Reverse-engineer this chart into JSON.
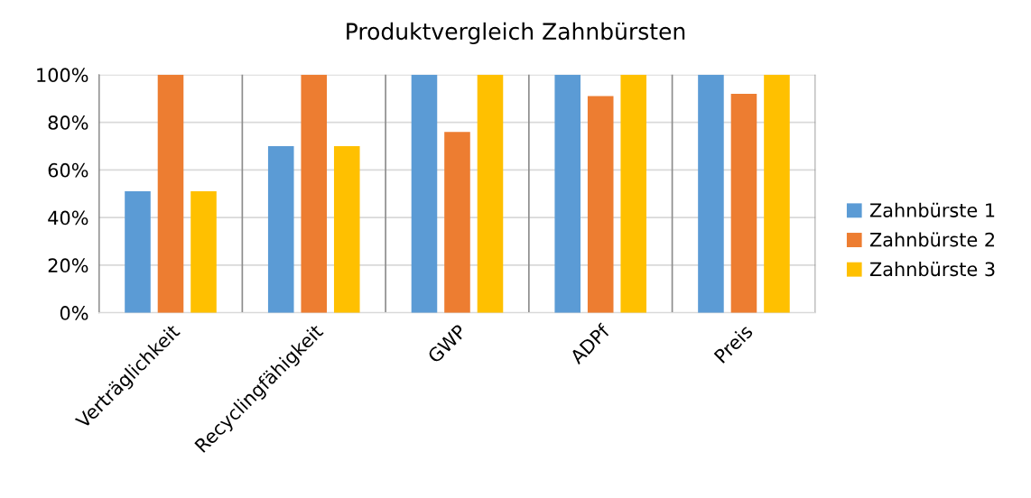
{
  "chart_data": {
    "type": "bar",
    "title": "Produktvergleich Zahnbürsten",
    "categories": [
      "Verträglichkeit",
      "Recyclingfähigkeit",
      "GWP",
      "ADPf",
      "Preis"
    ],
    "series": [
      {
        "name": "Zahnbürste 1",
        "color": "#5b9bd5",
        "values": [
          51,
          70,
          100,
          100,
          100
        ]
      },
      {
        "name": "Zahnbürste 2",
        "color": "#ed7d31",
        "values": [
          100,
          100,
          76,
          91,
          92
        ]
      },
      {
        "name": "Zahnbürste 3",
        "color": "#ffc000",
        "values": [
          51,
          70,
          100,
          100,
          100
        ]
      }
    ],
    "ylim": [
      0,
      100
    ],
    "yticks": [
      {
        "value": 0,
        "label": "0%"
      },
      {
        "value": 20,
        "label": "20%"
      },
      {
        "value": 40,
        "label": "40%"
      },
      {
        "value": 60,
        "label": "60%"
      },
      {
        "value": 80,
        "label": "80%"
      },
      {
        "value": 100,
        "label": "100%"
      }
    ],
    "grid": true,
    "legend": "right"
  }
}
